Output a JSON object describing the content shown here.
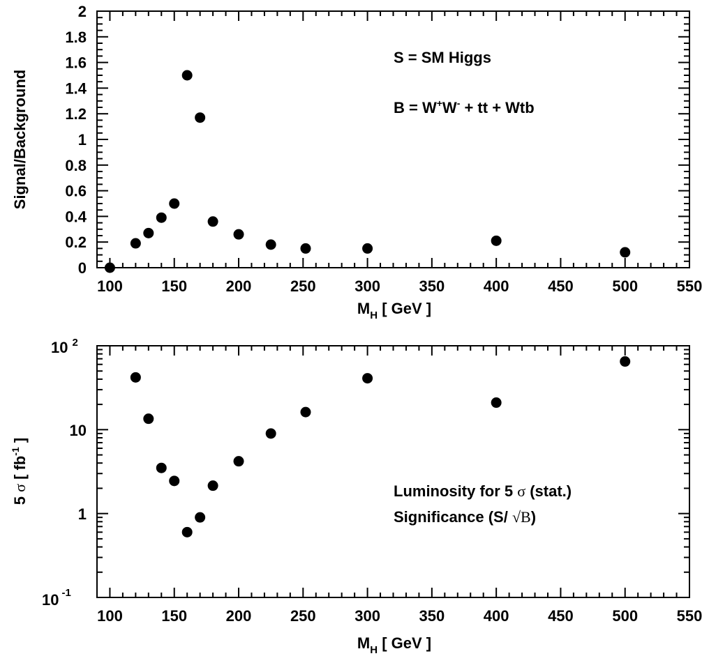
{
  "chart_data": [
    {
      "type": "scatter",
      "xlabel_main": "M",
      "xlabel_sub": "H",
      "xlabel_rest": " [ GeV ]",
      "ylabel": "Signal/Background",
      "xlim": [
        90,
        550
      ],
      "ylim": [
        0,
        2
      ],
      "log_y": false,
      "grid": false,
      "x_ticks": [
        100,
        150,
        200,
        250,
        300,
        350,
        400,
        450,
        500,
        550
      ],
      "y_ticks": [
        0,
        0.2,
        0.4,
        0.6,
        0.8,
        1,
        1.2,
        1.4,
        1.6,
        1.8,
        2
      ],
      "x_tick_labels": [
        "100",
        "150",
        "200",
        "250",
        "300",
        "350",
        "400",
        "450",
        "500",
        "550"
      ],
      "y_tick_labels": [
        "0",
        "0.2",
        "0.4",
        "0.6",
        "0.8",
        "1",
        "1.2",
        "1.4",
        "1.6",
        "1.8",
        "2"
      ],
      "points": [
        {
          "x": 100,
          "y": 0.0
        },
        {
          "x": 120,
          "y": 0.19
        },
        {
          "x": 130,
          "y": 0.27
        },
        {
          "x": 140,
          "y": 0.39
        },
        {
          "x": 150,
          "y": 0.5
        },
        {
          "x": 160,
          "y": 1.5
        },
        {
          "x": 170,
          "y": 1.17
        },
        {
          "x": 180,
          "y": 0.36
        },
        {
          "x": 200,
          "y": 0.26
        },
        {
          "x": 225,
          "y": 0.18
        },
        {
          "x": 252,
          "y": 0.15
        },
        {
          "x": 300,
          "y": 0.15
        },
        {
          "x": 400,
          "y": 0.21
        },
        {
          "x": 500,
          "y": 0.12
        }
      ],
      "annotations": {
        "line1": "S = SM Higgs",
        "line2_prefix": "B = W",
        "line2_sup1": "+",
        "line2_mid": "W",
        "line2_sup2": "-",
        "line2_suffix": " + tt + Wtb"
      }
    },
    {
      "type": "scatter",
      "xlabel_main": "M",
      "xlabel_sub": "H",
      "xlabel_rest": " [ GeV ]",
      "ylabel_prefix": "5 ",
      "ylabel_sigma": "σ",
      "ylabel_mid": " [ fb",
      "ylabel_sup": "-1",
      "ylabel_suffix": " ]",
      "xlim": [
        90,
        550
      ],
      "ylim": [
        0.1,
        100
      ],
      "log_y": true,
      "grid": false,
      "x_ticks": [
        100,
        150,
        200,
        250,
        300,
        350,
        400,
        450,
        500,
        550
      ],
      "x_tick_labels": [
        "100",
        "150",
        "200",
        "250",
        "300",
        "350",
        "400",
        "450",
        "500",
        "550"
      ],
      "y_tick_labels": {
        "top_base": "10",
        "top_exp": "2",
        "ten": "10",
        "one": "1",
        "bottom_base": "10",
        "bottom_exp": "-1"
      },
      "points": [
        {
          "x": 120,
          "y": 42
        },
        {
          "x": 130,
          "y": 13.5
        },
        {
          "x": 140,
          "y": 3.5
        },
        {
          "x": 150,
          "y": 2.45
        },
        {
          "x": 160,
          "y": 0.6
        },
        {
          "x": 170,
          "y": 0.9
        },
        {
          "x": 180,
          "y": 2.15
        },
        {
          "x": 200,
          "y": 4.2
        },
        {
          "x": 225,
          "y": 9.0
        },
        {
          "x": 252,
          "y": 16.2
        },
        {
          "x": 300,
          "y": 41
        },
        {
          "x": 400,
          "y": 21
        },
        {
          "x": 500,
          "y": 65
        }
      ],
      "annotations": {
        "line1_prefix": "Luminosity for 5 ",
        "line1_sigma": "σ",
        "line1_suffix": " (stat.)",
        "line2_prefix": "Significance (S/ ",
        "line2_root": "√",
        "line2_b": "B",
        "line2_suffix": ")"
      }
    }
  ]
}
